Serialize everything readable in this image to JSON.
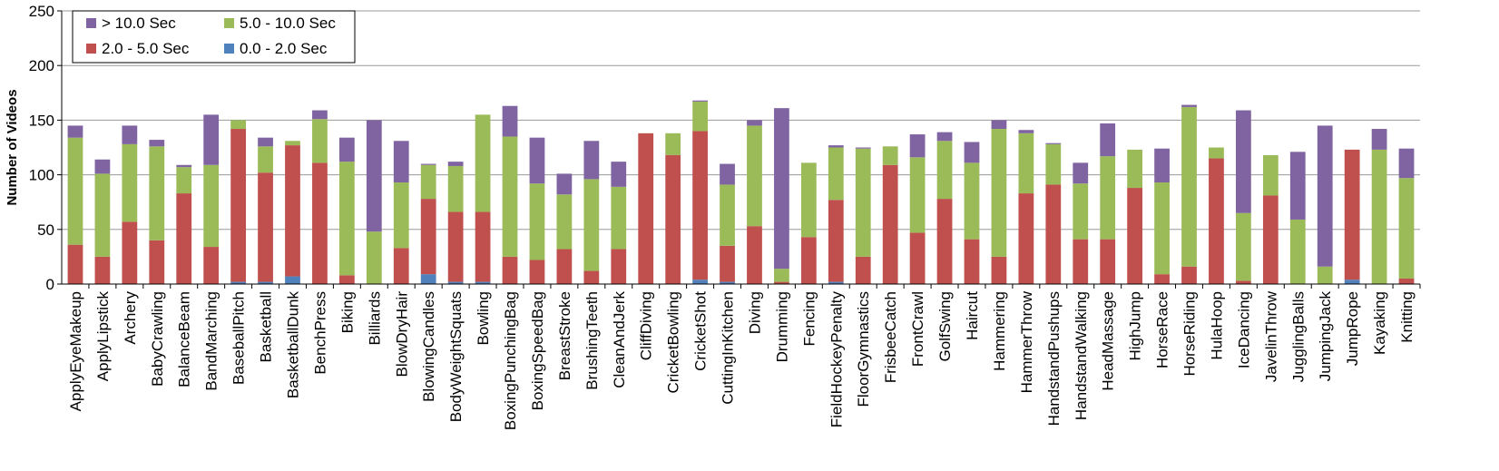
{
  "chart_data": {
    "type": "bar",
    "stacked": true,
    "ylabel": "Number of Videos",
    "ylim": [
      0,
      250
    ],
    "yticks": [
      "0",
      "50",
      "100",
      "150",
      "200",
      "250"
    ],
    "grid": true,
    "legend_position": "top-left",
    "categories": [
      "ApplyEyeMakeup",
      "ApplyLipstick",
      "Archery",
      "BabyCrawling",
      "BalanceBeam",
      "BandMarching",
      "BaseballPitch",
      "Basketball",
      "BasketballDunk",
      "BenchPress",
      "Biking",
      "Billiards",
      "BlowDryHair",
      "BlowingCandles",
      "BodyWeightSquats",
      "Bowling",
      "BoxingPunchingBag",
      "BoxingSpeedBag",
      "BreastStroke",
      "BrushingTeeth",
      "CleanAndJerk",
      "CliffDiving",
      "CricketBowling",
      "CricketShot",
      "CuttingInKitchen",
      "Diving",
      "Drumming",
      "Fencing",
      "FieldHockeyPenalty",
      "FloorGymnastics",
      "FrisbeeCatch",
      "FrontCrawl",
      "GolfSwing",
      "Haircut",
      "Hammering",
      "HammerThrow",
      "HandstandPushups",
      "HandstandWalking",
      "HeadMassage",
      "HighJump",
      "HorseRace",
      "HorseRiding",
      "HulaHoop",
      "IceDancing",
      "JavelinThrow",
      "JugglingBalls",
      "JumpingJack",
      "JumpRope",
      "Kayaking",
      "Knitting"
    ],
    "series": [
      {
        "name": "0.0 - 2.0 Sec",
        "color": "#4f81bd",
        "values": [
          0,
          0,
          0,
          0,
          0,
          0,
          2,
          2,
          7,
          0,
          0,
          0,
          0,
          9,
          2,
          2,
          0,
          0,
          0,
          0,
          0,
          0,
          0,
          4,
          2,
          0,
          0,
          0,
          2,
          0,
          0,
          0,
          0,
          0,
          0,
          0,
          0,
          0,
          0,
          0,
          0,
          0,
          0,
          0,
          0,
          0,
          0,
          4,
          0,
          0
        ]
      },
      {
        "name": "2.0 - 5.0 Sec",
        "color": "#c0504d",
        "values": [
          36,
          25,
          57,
          40,
          83,
          34,
          140,
          100,
          120,
          111,
          8,
          0,
          33,
          69,
          64,
          64,
          25,
          22,
          32,
          12,
          32,
          138,
          118,
          136,
          33,
          53,
          2,
          43,
          75,
          25,
          109,
          47,
          78,
          41,
          25,
          83,
          91,
          41,
          41,
          88,
          9,
          16,
          115,
          3,
          81,
          0,
          0,
          119,
          0,
          5
        ]
      },
      {
        "name": "5.0 - 10.0 Sec",
        "color": "#9bbb59",
        "values": [
          98,
          76,
          71,
          86,
          24,
          75,
          8,
          24,
          4,
          40,
          104,
          48,
          60,
          31,
          42,
          89,
          110,
          70,
          50,
          84,
          57,
          0,
          20,
          27,
          56,
          92,
          12,
          68,
          48,
          99,
          17,
          69,
          53,
          70,
          117,
          55,
          37,
          51,
          76,
          35,
          84,
          146,
          10,
          62,
          37,
          59,
          16,
          0,
          123,
          92
        ]
      },
      {
        "name": "> 10.0 Sec",
        "color": "#8064a2",
        "values": [
          11,
          13,
          17,
          6,
          2,
          46,
          0,
          8,
          0,
          8,
          22,
          102,
          38,
          1,
          4,
          0,
          28,
          42,
          19,
          35,
          23,
          0,
          0,
          1,
          19,
          5,
          147,
          0,
          2,
          1,
          0,
          21,
          8,
          19,
          8,
          3,
          1,
          19,
          30,
          0,
          31,
          2,
          0,
          94,
          0,
          62,
          129,
          0,
          19,
          27
        ]
      }
    ]
  },
  "legend": [
    {
      "label": "> 10.0 Sec",
      "color": "#8064a2"
    },
    {
      "label": "5.0 - 10.0 Sec",
      "color": "#9bbb59"
    },
    {
      "label": "2.0 - 5.0 Sec",
      "color": "#c0504d"
    },
    {
      "label": "0.0 - 2.0 Sec",
      "color": "#4f81bd"
    }
  ]
}
